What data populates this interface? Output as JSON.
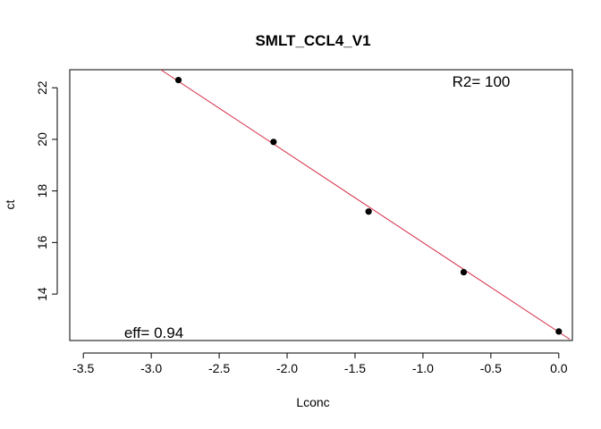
{
  "chart_data": {
    "type": "scatter",
    "title": "SMLT_CCL4_V1",
    "xlabel": "Lconc",
    "ylabel": "ct",
    "xlim": [
      -3.6,
      0.1
    ],
    "ylim": [
      12.2,
      22.7
    ],
    "xticks": [
      -3.5,
      -3.0,
      -2.5,
      -2.0,
      -1.5,
      -1.0,
      -0.5,
      0.0
    ],
    "xtick_labels": [
      "-3.5",
      "-3.0",
      "-2.5",
      "-2.0",
      "-1.5",
      "-1.0",
      "-0.5",
      "0.0"
    ],
    "yticks": [
      14,
      16,
      18,
      20,
      22
    ],
    "ytick_labels": [
      "14",
      "16",
      "18",
      "20",
      "22"
    ],
    "grid": false,
    "points": [
      {
        "x": -2.8,
        "y": 22.3
      },
      {
        "x": -2.1,
        "y": 19.9
      },
      {
        "x": -1.4,
        "y": 17.2
      },
      {
        "x": -0.7,
        "y": 14.85
      },
      {
        "x": 0.0,
        "y": 12.55
      }
    ],
    "point_color": "#000000",
    "fit_line": {
      "x0": -2.93,
      "y0": 22.7,
      "x1": 0.08,
      "y1": 12.25,
      "color": "#d62b45"
    },
    "annotations": {
      "r2": "R2= 100",
      "eff": "eff= 0.94"
    }
  }
}
